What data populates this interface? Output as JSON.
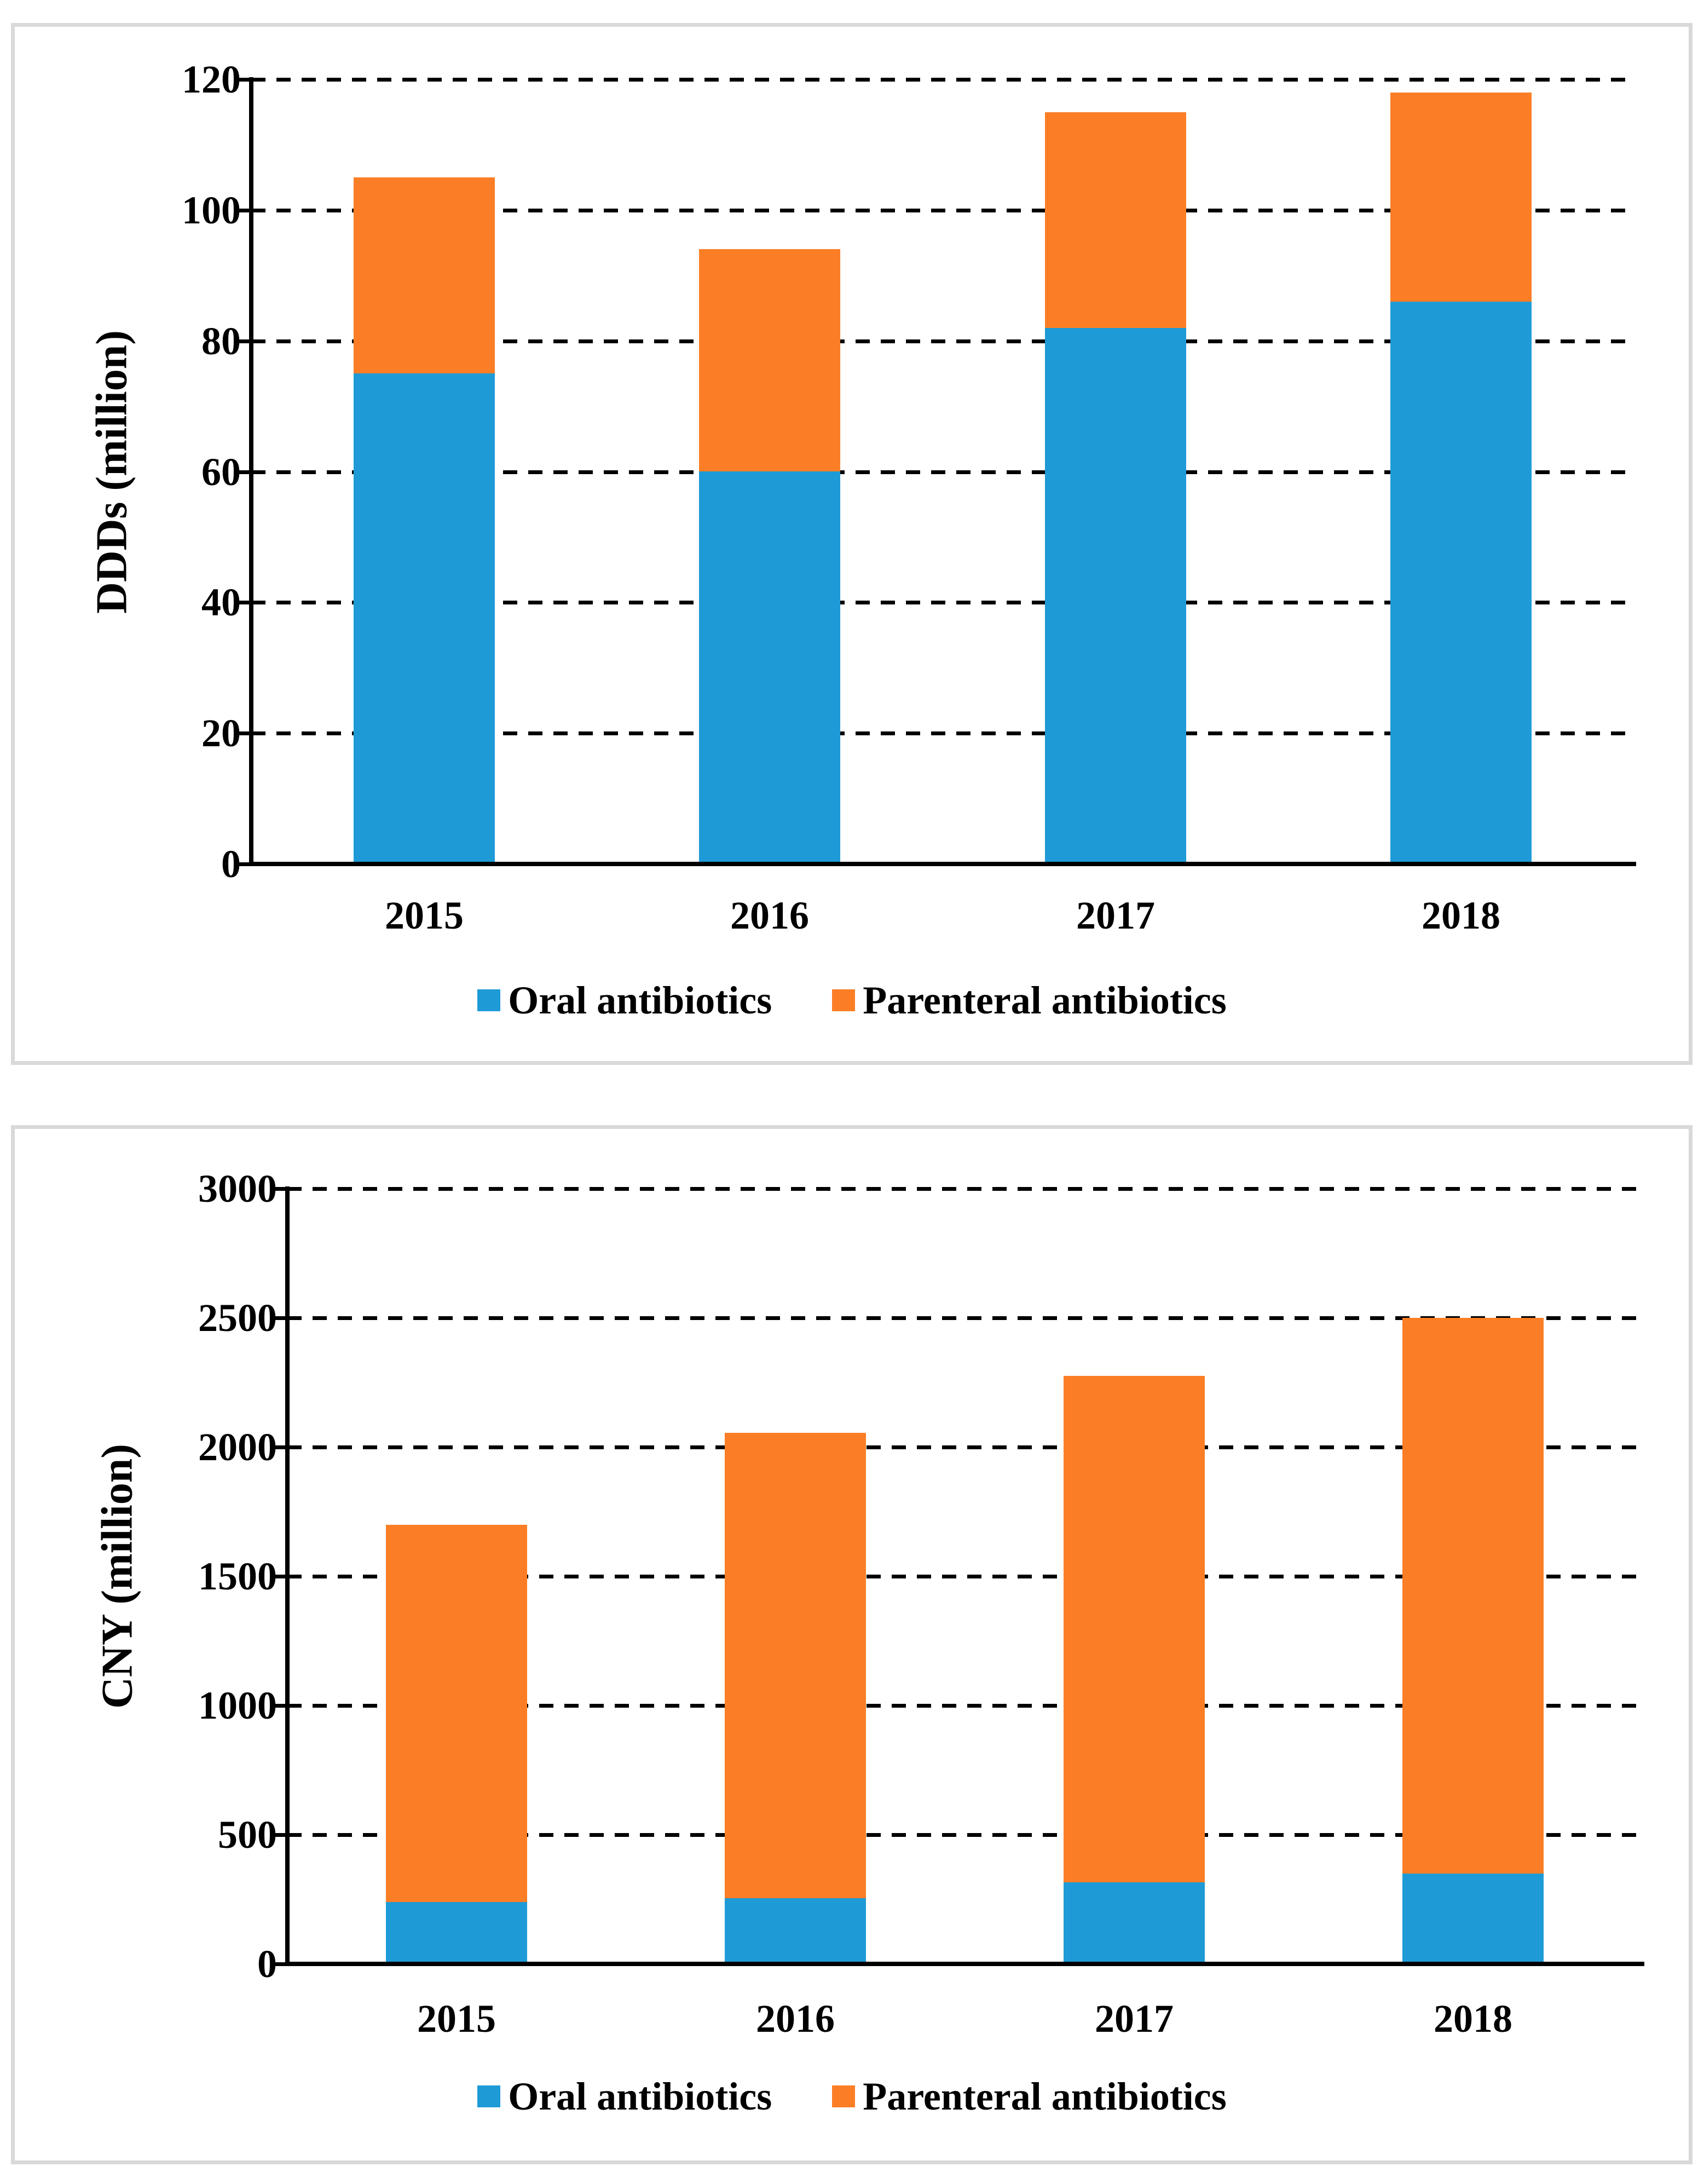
{
  "page": {
    "background": "#ffffff",
    "panel_border_color": "#d9d9d9"
  },
  "colors": {
    "oral": "#1e9bd7",
    "parenteral": "#fb7e26",
    "axis": "#000000",
    "text": "#000000"
  },
  "legend": {
    "items": [
      {
        "label": "Oral antibiotics",
        "color_key": "oral"
      },
      {
        "label": "Parenteral antibiotics",
        "color_key": "parenteral"
      }
    ]
  },
  "chart_data": [
    {
      "type": "bar",
      "stacked": true,
      "title": "",
      "xlabel": "",
      "ylabel": "DDDs (million)",
      "categories": [
        "2015",
        "2016",
        "2017",
        "2018"
      ],
      "series": [
        {
          "name": "Oral antibiotics",
          "values": [
            75,
            60,
            82,
            86
          ]
        },
        {
          "name": "Parenteral antibiotics",
          "values": [
            30,
            34,
            33,
            32
          ]
        }
      ],
      "totals": [
        105,
        94,
        115,
        118
      ],
      "ylim": [
        0,
        120
      ],
      "ytick_step": 20,
      "yticks": [
        "0",
        "20",
        "40",
        "60",
        "80",
        "100",
        "120"
      ],
      "grid": "horizontal-dashed",
      "legend_position": "bottom"
    },
    {
      "type": "bar",
      "stacked": true,
      "title": "",
      "xlabel": "",
      "ylabel": "CNY (million)",
      "categories": [
        "2015",
        "2016",
        "2017",
        "2018"
      ],
      "series": [
        {
          "name": "Oral antibiotics",
          "values": [
            240,
            255,
            315,
            350
          ]
        },
        {
          "name": "Parenteral antibiotics",
          "values": [
            1460,
            1800,
            1960,
            2150
          ]
        }
      ],
      "totals": [
        1700,
        2055,
        2275,
        2500
      ],
      "ylim": [
        0,
        3000
      ],
      "ytick_step": 500,
      "yticks": [
        "0",
        "500",
        "1000",
        "1500",
        "2000",
        "2500",
        "3000"
      ],
      "grid": "horizontal-dashed",
      "legend_position": "bottom"
    }
  ]
}
